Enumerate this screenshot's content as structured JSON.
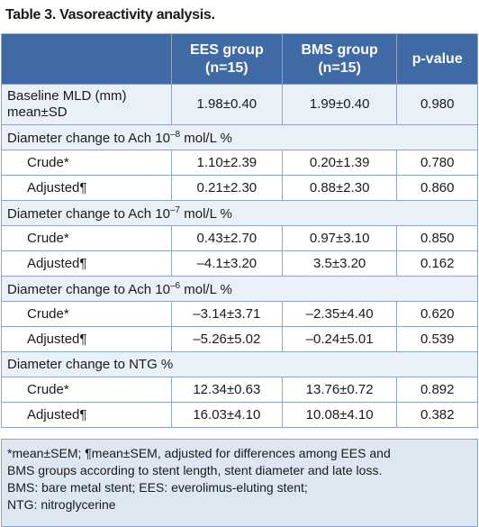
{
  "title": "Table 3. Vasoreactivity analysis.",
  "table": {
    "header": [
      "EES group\n(n=15)",
      "BMS group\n(n=15)",
      "p-value"
    ],
    "rows": [
      {
        "label": "Baseline MLD (mm)\nmean±SD",
        "values": [
          "1.98±0.40",
          "1.99±0.40",
          "0.980"
        ]
      },
      {
        "section": {
          "text": "Diameter change to Ach 10",
          "sup": "–8",
          "rest": " mol/L %"
        }
      },
      {
        "label": "Crude*",
        "values": [
          "1.10±2.39",
          "0.20±1.39",
          "0.780"
        ]
      },
      {
        "label": "Adjusted¶",
        "values": [
          "0.21±2.30",
          "0.88±2.30",
          "0.860"
        ]
      },
      {
        "section": {
          "text": "Diameter change to Ach 10",
          "sup": "–7",
          "rest": " mol/L %"
        }
      },
      {
        "label": "Crude*",
        "values": [
          "0.43±2.70",
          "0.97±3.10",
          "0.850"
        ]
      },
      {
        "label": "Adjusted¶",
        "values": [
          "–4.1±3.20",
          "3.5±3.20",
          "0.162"
        ]
      },
      {
        "section": {
          "text": "Diameter change to Ach 10",
          "sup": "–6",
          "rest": " mol/L %"
        }
      },
      {
        "label": "Crude*",
        "values": [
          "–3.14±3.71",
          "–2.35±4.40",
          "0.620"
        ]
      },
      {
        "label": "Adjusted¶",
        "values": [
          "–5.26±5.02",
          "–0.24±5.01",
          "0.539"
        ]
      },
      {
        "section": {
          "text": "Diameter change to NTG %"
        }
      },
      {
        "label": "Crude*",
        "values": [
          "12.34±0.63",
          "13.76±0.72",
          "0.892"
        ]
      },
      {
        "label": "Adjusted¶",
        "values": [
          "16.03±4.10",
          "10.08±4.10",
          "0.382"
        ]
      }
    ],
    "footnotes": [
      "*mean±SEM; ¶mean±SEM, adjusted for differences among EES and",
      "BMS groups according to stent length, stent diameter and late loss.",
      "BMS: bare metal stent; EES: everolimus-eluting stent;",
      "NTG: nitroglycerine"
    ]
  }
}
